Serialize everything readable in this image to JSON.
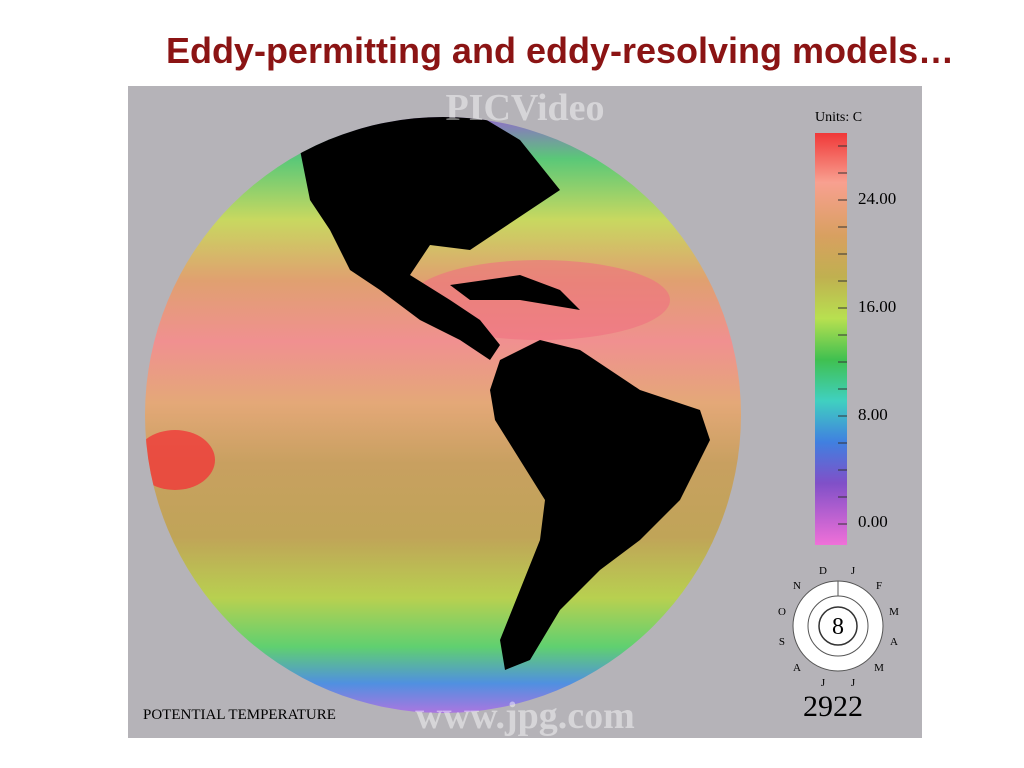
{
  "title": "Eddy-permitting and eddy-resolving models…",
  "figure": {
    "watermark_top": "PICVideo",
    "watermark_bottom": "www.jpg.com",
    "units": "Units:  C",
    "colorbar_labels": [
      "24.00",
      "16.00",
      "8.00",
      "0.00"
    ],
    "caption": "POTENTIAL TEMPERATURE",
    "dial": {
      "months": [
        "D",
        "J",
        "F",
        "M",
        "A",
        "M",
        "J",
        "J",
        "A",
        "S",
        "O",
        "N"
      ],
      "center": "8"
    },
    "counter": "2922"
  }
}
